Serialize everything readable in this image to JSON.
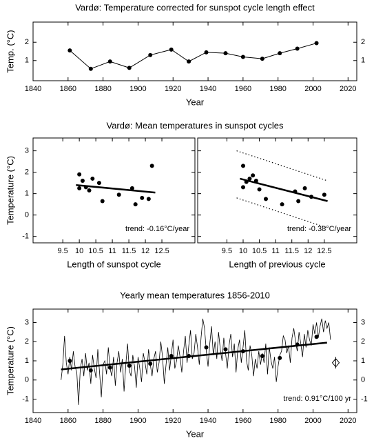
{
  "chart_data": [
    {
      "type": "line",
      "title": "Vardø: Temperature corrected for sunspot cycle length effect",
      "xlabel": "Year",
      "ylabel": "Temp. (°C)",
      "xlim": [
        1840,
        2025
      ],
      "xticks": [
        1840,
        1860,
        1880,
        1900,
        1920,
        1940,
        1960,
        1980,
        2000,
        2020
      ],
      "ylim": [
        -0.1,
        3.1
      ],
      "yticks": [
        1,
        2
      ],
      "mirror_labels": true,
      "series": [
        {
          "style": "line-markers",
          "color": "#000000",
          "x": [
            1861,
            1873,
            1884,
            1895,
            1907,
            1919,
            1929,
            1939,
            1950,
            1960,
            1971,
            1981,
            1991,
            2002
          ],
          "values": [
            1.55,
            0.55,
            0.95,
            0.6,
            1.3,
            1.6,
            0.95,
            1.45,
            1.4,
            1.2,
            1.1,
            1.4,
            1.65,
            1.95
          ]
        }
      ]
    },
    {
      "type": "scatter",
      "title": "Vardø: Mean temperatures in sunspot cycles",
      "xlabel": "Length of sunspot cycle",
      "ylabel": "Temperature (°C)",
      "annotation": "trend: -0.16°C/year",
      "xlim": [
        8.6,
        13.5
      ],
      "xticks": [
        9.5,
        10,
        10.5,
        11,
        11.5,
        12,
        12.5
      ],
      "ylim": [
        -1.3,
        3.6
      ],
      "yticks": [
        -1,
        0,
        1,
        2,
        3
      ],
      "mirror_labels": false,
      "series": [
        {
          "style": "markers",
          "color": "#000000",
          "x": [
            10.0,
            10.0,
            10.1,
            10.2,
            10.3,
            10.4,
            10.6,
            10.7,
            11.2,
            11.6,
            11.7,
            11.9,
            12.1,
            12.2
          ],
          "values": [
            1.9,
            1.25,
            1.6,
            1.3,
            1.15,
            1.7,
            1.5,
            0.65,
            0.95,
            1.25,
            0.5,
            0.8,
            0.75,
            2.3
          ]
        },
        {
          "style": "bold",
          "color": "#000000",
          "x": [
            9.9,
            12.3
          ],
          "values": [
            1.4,
            1.05
          ]
        }
      ]
    },
    {
      "type": "scatter",
      "xlabel": "Length of previous cycle",
      "annotation": "trend: -0.38°C/year",
      "xlim": [
        8.6,
        13.5
      ],
      "xticks": [
        9.5,
        10,
        10.5,
        11,
        11.5,
        12,
        12.5
      ],
      "ylim": [
        -1.3,
        3.6
      ],
      "yticks": [
        -1,
        0,
        1,
        2,
        3
      ],
      "mirror_labels": false,
      "series": [
        {
          "style": "markers",
          "color": "#000000",
          "x": [
            10.0,
            10.0,
            10.1,
            10.2,
            10.3,
            10.4,
            10.5,
            10.7,
            11.2,
            11.6,
            11.7,
            11.9,
            12.1,
            12.5
          ],
          "values": [
            2.3,
            1.3,
            1.55,
            1.7,
            1.85,
            1.6,
            1.2,
            0.75,
            0.5,
            1.1,
            0.65,
            1.25,
            0.85,
            0.95
          ]
        },
        {
          "style": "bold",
          "color": "#000000",
          "x": [
            9.9,
            12.6
          ],
          "values": [
            1.7,
            0.65
          ]
        },
        {
          "style": "dotted",
          "color": "#000000",
          "x": [
            9.8,
            12.6
          ],
          "values": [
            3.0,
            1.6
          ]
        },
        {
          "style": "dotted",
          "color": "#000000",
          "x": [
            9.8,
            12.6
          ],
          "values": [
            0.8,
            -0.6
          ]
        }
      ]
    },
    {
      "type": "line",
      "title": "Yearly mean temperatures 1856-2010",
      "xlabel": "Year",
      "ylabel": "Temperature (°C)",
      "annotation": "trend: 0.91°C/100 yr",
      "xlim": [
        1840,
        2025
      ],
      "xticks": [
        1840,
        1860,
        1880,
        1900,
        1920,
        1940,
        1960,
        1980,
        2000,
        2020
      ],
      "ylim": [
        -1.7,
        3.7
      ],
      "yticks": [
        -1,
        0,
        1,
        2,
        3
      ],
      "mirror_labels": true,
      "series": [
        {
          "style": "line",
          "color": "#000000",
          "x": [
            1856,
            1857,
            1858,
            1859,
            1860,
            1861,
            1862,
            1863,
            1864,
            1865,
            1866,
            1867,
            1868,
            1869,
            1870,
            1871,
            1872,
            1873,
            1874,
            1875,
            1876,
            1877,
            1878,
            1879,
            1880,
            1881,
            1882,
            1883,
            1884,
            1885,
            1886,
            1887,
            1888,
            1889,
            1890,
            1891,
            1892,
            1893,
            1894,
            1895,
            1896,
            1897,
            1898,
            1899,
            1900,
            1901,
            1902,
            1903,
            1904,
            1905,
            1906,
            1907,
            1908,
            1909,
            1910,
            1911,
            1912,
            1913,
            1914,
            1915,
            1916,
            1917,
            1918,
            1919,
            1920,
            1921,
            1922,
            1923,
            1924,
            1925,
            1926,
            1927,
            1928,
            1929,
            1930,
            1931,
            1932,
            1933,
            1934,
            1935,
            1936,
            1937,
            1938,
            1939,
            1940,
            1941,
            1942,
            1943,
            1944,
            1945,
            1946,
            1947,
            1948,
            1949,
            1950,
            1951,
            1952,
            1953,
            1954,
            1955,
            1956,
            1957,
            1958,
            1959,
            1960,
            1961,
            1962,
            1963,
            1964,
            1965,
            1966,
            1967,
            1968,
            1969,
            1970,
            1971,
            1972,
            1973,
            1974,
            1975,
            1976,
            1977,
            1978,
            1979,
            1980,
            1981,
            1982,
            1983,
            1984,
            1985,
            1986,
            1987,
            1988,
            1989,
            1990,
            1991,
            1992,
            1993,
            1994,
            1995,
            1996,
            1997,
            1998,
            1999,
            2000,
            2001,
            2002,
            2003,
            2004,
            2005,
            2006,
            2007,
            2008,
            2009,
            2010
          ],
          "values": [
            0.0,
            0.8,
            2.3,
            0.9,
            0.3,
            1.2,
            0.5,
            1.5,
            0.7,
            0.4,
            -1.3,
            0.6,
            1.1,
            0.2,
            1.4,
            0.5,
            0.9,
            -0.2,
            1.3,
            0.6,
            0.1,
            1.6,
            0.4,
            -0.9,
            0.8,
            1.0,
            0.3,
            1.7,
            0.6,
            0.2,
            1.2,
            -0.3,
            0.9,
            1.5,
            0.4,
            1.1,
            -0.6,
            0.8,
            1.9,
            0.5,
            0.2,
            1.3,
            0.7,
            -0.4,
            1.2,
            0.6,
            -0.1,
            1.4,
            0.9,
            0.3,
            1.6,
            0.8,
            0.2,
            1.1,
            1.5,
            0.4,
            0.9,
            2.0,
            1.2,
            -0.2,
            0.8,
            1.7,
            0.5,
            1.3,
            2.1,
            0.6,
            1.0,
            1.8,
            1.2,
            0.4,
            1.5,
            2.3,
            0.9,
            1.8,
            2.6,
            1.1,
            1.4,
            2.4,
            1.7,
            0.8,
            2.2,
            3.2,
            2.7,
            1.5,
            0.7,
            1.9,
            2.8,
            1.3,
            2.0,
            1.1,
            2.5,
            1.6,
            1.0,
            2.2,
            1.4,
            0.6,
            1.8,
            2.4,
            1.2,
            1.9,
            0.4,
            1.6,
            2.1,
            0.9,
            1.7,
            2.6,
            1.0,
            0.5,
            1.8,
            1.3,
            0.2,
            1.1,
            0.6,
            1.5,
            0.8,
            1.4,
            0.9,
            1.9,
            0.3,
            1.7,
            1.0,
            0.6,
            1.2,
            -0.1,
            0.7,
            1.3,
            1.5,
            2.3,
            2.1,
            1.4,
            1.8,
            0.9,
            2.2,
            2.7,
            2.0,
            1.5,
            2.5,
            1.9,
            1.2,
            2.4,
            1.7,
            2.6,
            2.1,
            1.8,
            2.9,
            2.4,
            3.0,
            2.2,
            2.8,
            3.2,
            2.5,
            3.1,
            2.7,
            3.0,
            2.1
          ]
        },
        {
          "style": "markers",
          "color": "#000000",
          "x": [
            1861,
            1873,
            1884,
            1895,
            1907,
            1919,
            1929,
            1939,
            1950,
            1960,
            1971,
            1981,
            1991,
            2002
          ],
          "values": [
            1.0,
            0.5,
            0.65,
            0.75,
            0.85,
            1.25,
            1.25,
            1.7,
            1.6,
            1.5,
            1.25,
            1.15,
            1.85,
            2.25
          ]
        },
        {
          "style": "bold",
          "color": "#000000",
          "x": [
            1856,
            2008
          ],
          "values": [
            0.55,
            1.95
          ]
        },
        {
          "style": "diamond",
          "color": "#000000",
          "x": [
            2013
          ],
          "values": [
            0.9
          ],
          "errors": [
            0.3
          ]
        }
      ]
    }
  ]
}
